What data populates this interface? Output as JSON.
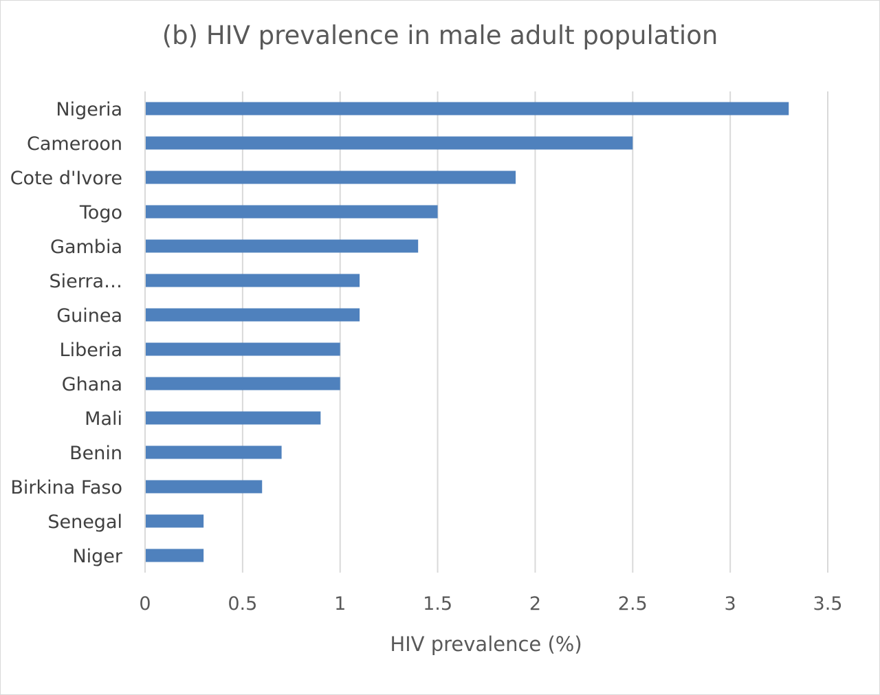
{
  "chart_data": {
    "type": "bar",
    "orientation": "horizontal",
    "title": "(b) HIV prevalence in male adult population",
    "xlabel": "HIV prevalence (%)",
    "ylabel": "",
    "categories": [
      "Nigeria",
      "Cameroon",
      "Cote d'Ivore",
      "Togo",
      "Gambia",
      "Sierra…",
      "Guinea",
      "Liberia",
      "Ghana",
      "Mali",
      "Benin",
      "Birkina Faso",
      "Senegal",
      "Niger"
    ],
    "values": [
      3.3,
      2.5,
      1.9,
      1.5,
      1.4,
      1.1,
      1.1,
      1.0,
      1.0,
      0.9,
      0.7,
      0.6,
      0.3,
      0.3
    ],
    "xlim": [
      0,
      3.5
    ],
    "xticks": [
      "0",
      "0.5",
      "1",
      "1.5",
      "2",
      "2.5",
      "3",
      "3.5"
    ],
    "grid": "vertical",
    "legend": "none",
    "bar_color": "#4f81bd",
    "grid_color": "#d9d9d9"
  }
}
